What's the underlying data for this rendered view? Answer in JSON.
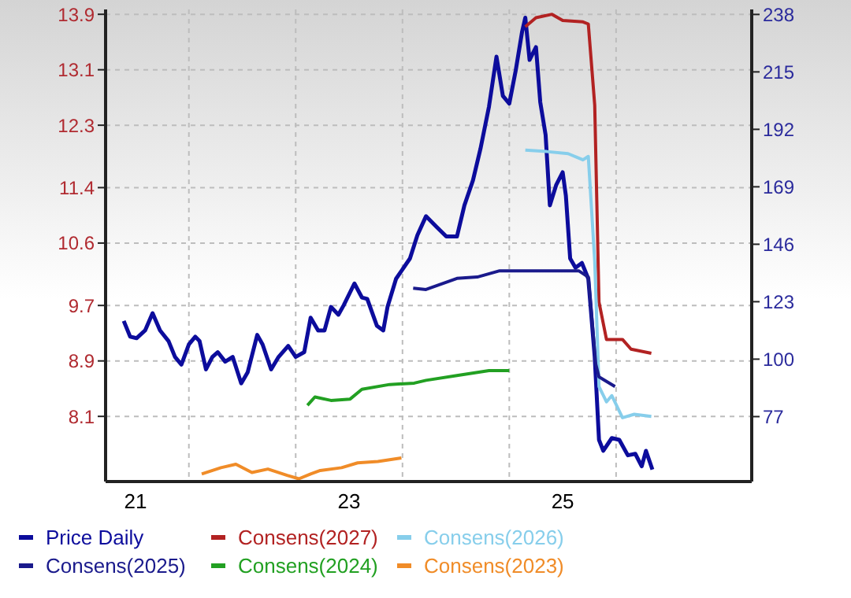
{
  "chart_data": {
    "type": "line",
    "xlim": [
      20.72,
      26.77
    ],
    "xticks": [
      21,
      {
        "value": 21.5,
        "label": null
      },
      {
        "value": 22.5,
        "label": null
      },
      23,
      {
        "value": 23.5,
        "label": null
      },
      {
        "value": 24.5,
        "label": null
      },
      25,
      {
        "value": 25.5,
        "label": null
      }
    ],
    "ylim": [
      7.16,
      13.97
    ],
    "yticks": [
      8.1,
      8.9,
      9.7,
      10.6,
      11.4,
      12.3,
      13.1,
      13.9
    ],
    "y2lim": [
      51,
      240
    ],
    "y2ticks": [
      77,
      100,
      123,
      146,
      169,
      192,
      215,
      238
    ],
    "grid": true,
    "legend": "bottom",
    "series": [
      {
        "name": "Price Daily",
        "color": "#0c0c9c",
        "axis": "y2",
        "x": [
          20.89,
          20.95,
          21.01,
          21.09,
          21.16,
          21.23,
          21.31,
          21.37,
          21.43,
          21.5,
          21.56,
          21.6,
          21.66,
          21.72,
          21.77,
          21.84,
          21.91,
          21.99,
          22.05,
          22.14,
          22.19,
          22.27,
          22.34,
          22.43,
          22.5,
          22.58,
          22.64,
          22.71,
          22.77,
          22.83,
          22.9,
          22.95,
          23.05,
          23.12,
          23.17,
          23.26,
          23.32,
          23.36,
          23.44,
          23.49,
          23.57,
          23.64,
          23.72,
          23.82,
          23.91,
          24.01,
          24.08,
          24.16,
          24.23,
          24.31,
          24.38,
          24.44,
          24.5,
          24.56,
          24.62,
          24.65,
          24.69,
          24.75,
          24.79,
          24.84,
          24.88,
          24.94,
          25.0,
          25.03,
          25.07,
          25.12,
          25.18,
          25.24,
          25.3,
          25.34,
          25.38,
          25.46,
          25.53,
          25.61,
          25.68,
          25.74,
          25.78,
          25.84
        ],
        "values": [
          115.3,
          109,
          108.4,
          111.5,
          118.4,
          111.5,
          107.2,
          100.9,
          97.8,
          105.9,
          109,
          107.2,
          95.9,
          100.9,
          102.8,
          99,
          100.9,
          90.3,
          94.7,
          109.7,
          105.9,
          95.9,
          100.9,
          105.3,
          100.9,
          102.8,
          116.6,
          111.5,
          111.5,
          120.9,
          117.8,
          121.6,
          130.3,
          124.7,
          124.1,
          113.4,
          111.5,
          120.9,
          132.2,
          135.3,
          140.3,
          149.7,
          157.2,
          152.9,
          149.1,
          149.1,
          161.6,
          171.6,
          184.2,
          201.1,
          221.1,
          205.4,
          202.3,
          215.5,
          231.1,
          236.7,
          219.8,
          224.9,
          202.9,
          189.8,
          161.6,
          169.8,
          174.8,
          165.4,
          140.3,
          136.6,
          138.5,
          132.2,
          100.9,
          67.7,
          63.3,
          68.4,
          67.7,
          61.5,
          62.1,
          57.1,
          63.3,
          55.8
        ]
      },
      {
        "name": "Consens(2027)",
        "color": "#b22222",
        "x": [
          24.65,
          24.75,
          24.9,
          25.0,
          25.19,
          25.24,
          25.3,
          25.34,
          25.41,
          25.56,
          25.64,
          25.83
        ],
        "values": [
          13.72,
          13.85,
          13.9,
          13.81,
          13.79,
          13.76,
          12.59,
          9.75,
          9.21,
          9.21,
          9.07,
          9.01
        ]
      },
      {
        "name": "Consens(2026)",
        "color": "#87ceeb",
        "x": [
          24.65,
          24.85,
          25.05,
          25.19,
          25.24,
          25.3,
          25.34,
          25.41,
          25.46,
          25.56,
          25.67,
          25.83
        ],
        "values": [
          11.94,
          11.92,
          11.89,
          11.8,
          11.85,
          10.34,
          8.53,
          8.31,
          8.4,
          8.08,
          8.13,
          8.1
        ]
      },
      {
        "name": "Consens(2025)",
        "color": "#1a1a8c",
        "x": [
          23.6,
          23.72,
          24.01,
          24.2,
          24.41,
          24.65,
          24.9,
          25.15,
          25.24,
          25.31,
          25.34,
          25.49
        ],
        "values": [
          9.95,
          9.93,
          10.09,
          10.11,
          10.2,
          10.2,
          10.2,
          10.2,
          10.11,
          8.85,
          8.67,
          8.53
        ]
      },
      {
        "name": "Consens(2024)",
        "color": "#22a022",
        "x": [
          22.61,
          22.68,
          22.83,
          23.01,
          23.12,
          23.38,
          23.61,
          23.72,
          24.01,
          24.31,
          24.5
        ],
        "values": [
          8.26,
          8.38,
          8.33,
          8.35,
          8.49,
          8.56,
          8.58,
          8.62,
          8.69,
          8.76,
          8.76
        ]
      },
      {
        "name": "Consens(2023)",
        "color": "#f08c28",
        "x": [
          21.62,
          21.8,
          21.94,
          22.09,
          22.24,
          22.42,
          22.53,
          22.64,
          22.73,
          22.93,
          23.08,
          23.27,
          23.49
        ],
        "values": [
          7.27,
          7.36,
          7.41,
          7.29,
          7.34,
          7.25,
          7.2,
          7.27,
          7.32,
          7.36,
          7.43,
          7.45,
          7.5
        ]
      }
    ]
  }
}
